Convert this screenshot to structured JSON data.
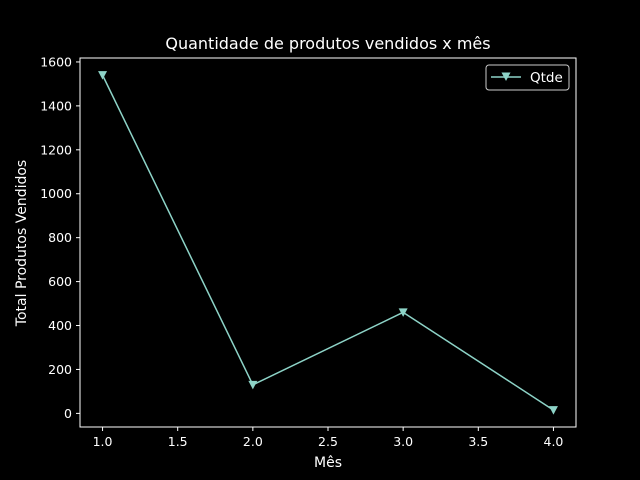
{
  "chart_data": {
    "type": "line",
    "title": "Quantidade de produtos vendidos x mês",
    "xlabel": "Mês",
    "ylabel": "Total Produtos Vendidos",
    "x": [
      1.0,
      2.0,
      3.0,
      4.0
    ],
    "series": [
      {
        "name": "Qtde",
        "values": [
          1540,
          130,
          460,
          15
        ],
        "color": "#8dd3c7",
        "marker": "triangle-down"
      }
    ],
    "xlim": [
      0.85,
      4.15
    ],
    "ylim": [
      -62,
      1618
    ],
    "xticks": [
      {
        "value": 1.0,
        "label": "1.0"
      },
      {
        "value": 1.5,
        "label": "1.5"
      },
      {
        "value": 2.0,
        "label": "2.0"
      },
      {
        "value": 2.5,
        "label": "2.5"
      },
      {
        "value": 3.0,
        "label": "3.0"
      },
      {
        "value": 3.5,
        "label": "3.5"
      },
      {
        "value": 4.0,
        "label": "4.0"
      }
    ],
    "yticks": [
      {
        "value": 0,
        "label": "0"
      },
      {
        "value": 200,
        "label": "200"
      },
      {
        "value": 400,
        "label": "400"
      },
      {
        "value": 600,
        "label": "600"
      },
      {
        "value": 800,
        "label": "800"
      },
      {
        "value": 1000,
        "label": "1000"
      },
      {
        "value": 1200,
        "label": "1200"
      },
      {
        "value": 1400,
        "label": "1400"
      },
      {
        "value": 1600,
        "label": "1600"
      }
    ],
    "grid": false,
    "legend_position": "top-right",
    "background": "#000000",
    "foreground": "#ffffff"
  }
}
